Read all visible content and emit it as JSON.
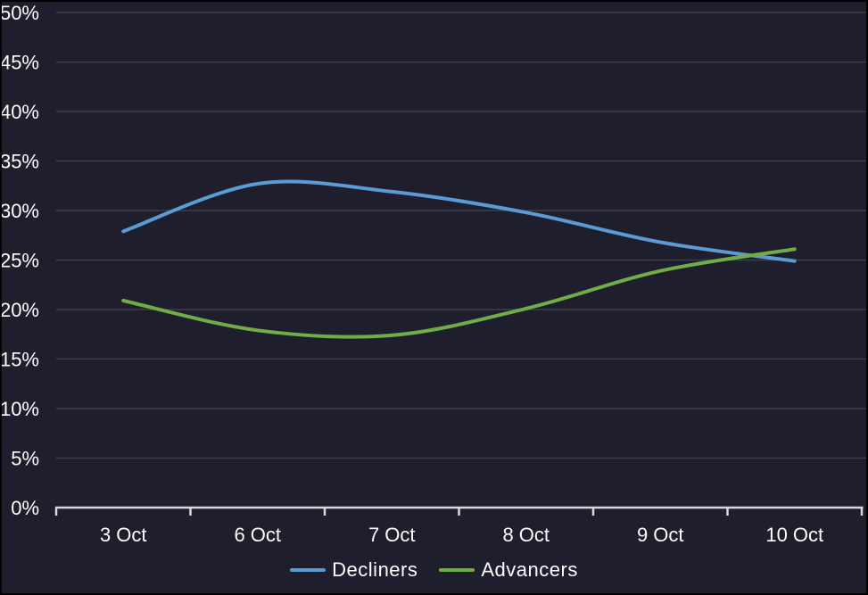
{
  "colors": {
    "background": "#1f1e2c",
    "border": "#000000",
    "text": "#fdfdfd",
    "gridline": "#3e3e48",
    "axis": "#d9d9d9",
    "decliners_line": "#5b9bd5",
    "advancers_line": "#70ad47"
  },
  "chart_data": {
    "type": "line",
    "title": "",
    "x_labels": [
      "3 Oct",
      "6 Oct",
      "7 Oct",
      "8 Oct",
      "9 Oct",
      "10 Oct"
    ],
    "y_tick_labels": [
      "0%",
      "5%",
      "10%",
      "15%",
      "20%",
      "25%",
      "30%",
      "35%",
      "40%",
      "45%",
      "50%"
    ],
    "ylim": [
      0,
      50
    ],
    "y_step": 5,
    "grid": true,
    "smooth": true,
    "legend_position": "bottom",
    "series": [
      {
        "name": "Decliners",
        "color": "#5b9bd5",
        "values": [
          27.9,
          32.7,
          31.9,
          29.8,
          26.8,
          24.9
        ]
      },
      {
        "name": "Advancers",
        "color": "#70ad47",
        "values": [
          20.9,
          17.9,
          17.4,
          20.1,
          23.9,
          26.1
        ]
      }
    ]
  }
}
